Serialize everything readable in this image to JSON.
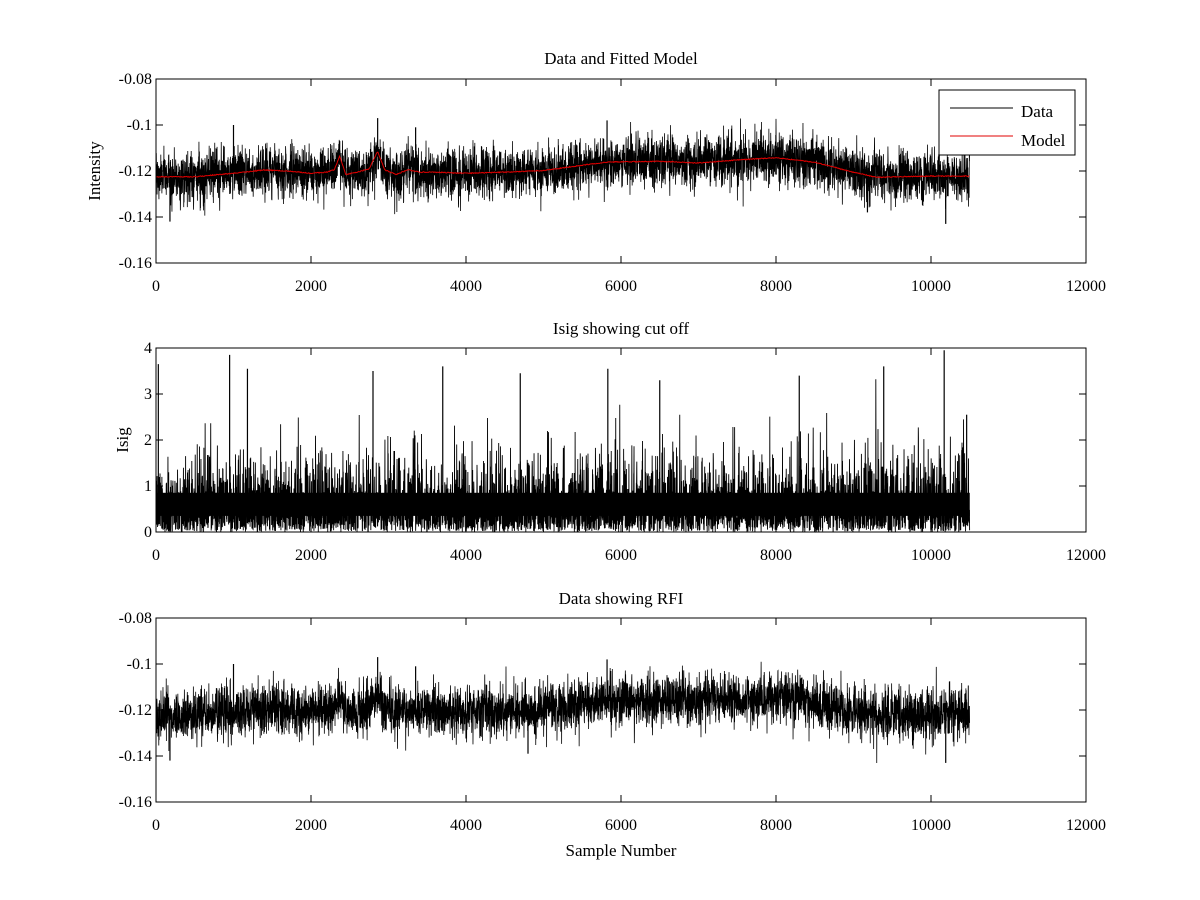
{
  "figure": {
    "background_color": "#ffffff",
    "axes_color": "#000000"
  },
  "chart_data": [
    {
      "type": "line",
      "title": "Data and Fitted Model",
      "xlabel": "",
      "ylabel": "Intensity",
      "xlim": [
        0,
        12000
      ],
      "ylim": [
        -0.16,
        -0.08
      ],
      "xticks": [
        0,
        2000,
        4000,
        6000,
        8000,
        10000,
        12000
      ],
      "yticks": [
        -0.16,
        -0.14,
        -0.12,
        -0.1,
        -0.08
      ],
      "xtick_labels": [
        "0",
        "2000",
        "4000",
        "6000",
        "8000",
        "10000",
        "12000"
      ],
      "ytick_labels": [
        "-0.16",
        "-0.14",
        "-0.12",
        "-0.1",
        "-0.08"
      ],
      "grid": false,
      "legend": {
        "position": "top-right",
        "entries": [
          "Data",
          "Model"
        ]
      },
      "series": [
        {
          "name": "Data",
          "color": "#000000",
          "kind": "noisy",
          "n_samples": 10500,
          "baseline_from": "Model",
          "noise_sd": 0.0055,
          "range_approx": [
            -0.143,
            -0.097
          ],
          "spikes": [
            {
              "x": 2370,
              "y": -0.107
            },
            {
              "x": 2860,
              "y": -0.097
            },
            {
              "x": 5820,
              "y": -0.098
            },
            {
              "x": 1000,
              "y": -0.1
            },
            {
              "x": 3350,
              "y": -0.101
            },
            {
              "x": 10190,
              "y": -0.143
            },
            {
              "x": 180,
              "y": -0.142
            },
            {
              "x": 9180,
              "y": -0.138
            }
          ]
        },
        {
          "name": "Model",
          "color": "#e00000",
          "kind": "line",
          "x": [
            0,
            500,
            1000,
            1400,
            1800,
            2000,
            2200,
            2300,
            2370,
            2450,
            2600,
            2750,
            2860,
            2950,
            3100,
            3250,
            3400,
            3600,
            4000,
            4500,
            5000,
            5500,
            5800,
            6000,
            6500,
            7000,
            7500,
            8000,
            8500,
            9000,
            9300,
            9600,
            10000,
            10500
          ],
          "y": [
            -0.1225,
            -0.1225,
            -0.121,
            -0.1195,
            -0.1203,
            -0.121,
            -0.1205,
            -0.1195,
            -0.1135,
            -0.1215,
            -0.1205,
            -0.119,
            -0.1115,
            -0.1195,
            -0.1215,
            -0.1195,
            -0.1205,
            -0.1205,
            -0.121,
            -0.1205,
            -0.1198,
            -0.1175,
            -0.1162,
            -0.116,
            -0.1158,
            -0.1165,
            -0.1152,
            -0.1142,
            -0.1162,
            -0.1205,
            -0.1228,
            -0.1225,
            -0.1222,
            -0.1222
          ]
        }
      ]
    },
    {
      "type": "line",
      "title": "Isig showing cut off",
      "xlabel": "",
      "ylabel": "Isig",
      "xlim": [
        0,
        12000
      ],
      "ylim": [
        0,
        4
      ],
      "xticks": [
        0,
        2000,
        4000,
        6000,
        8000,
        10000,
        12000
      ],
      "yticks": [
        0,
        1,
        2,
        3,
        4
      ],
      "xtick_labels": [
        "0",
        "2000",
        "4000",
        "6000",
        "8000",
        "10000",
        "12000"
      ],
      "ytick_labels": [
        "0",
        "1",
        "2",
        "3",
        "4"
      ],
      "grid": false,
      "series": [
        {
          "name": "Isig",
          "color": "#000000",
          "kind": "abs-noise",
          "n_samples": 10500,
          "dense_band": [
            0.05,
            1.55
          ],
          "range_approx": [
            0,
            3.95
          ],
          "peaks": [
            {
              "x": 30,
              "y": 3.65
            },
            {
              "x": 950,
              "y": 3.85
            },
            {
              "x": 1180,
              "y": 3.55
            },
            {
              "x": 2800,
              "y": 3.5
            },
            {
              "x": 3700,
              "y": 3.6
            },
            {
              "x": 4700,
              "y": 3.45
            },
            {
              "x": 5830,
              "y": 3.55
            },
            {
              "x": 6500,
              "y": 3.3
            },
            {
              "x": 8300,
              "y": 3.4
            },
            {
              "x": 9390,
              "y": 3.6
            },
            {
              "x": 10170,
              "y": 3.95
            },
            {
              "x": 10460,
              "y": 2.55
            }
          ]
        }
      ]
    },
    {
      "type": "line",
      "title": "Data showing RFI",
      "xlabel": "Sample Number",
      "ylabel": "",
      "xlim": [
        0,
        12000
      ],
      "ylim": [
        -0.16,
        -0.08
      ],
      "xticks": [
        0,
        2000,
        4000,
        6000,
        8000,
        10000,
        12000
      ],
      "yticks": [
        -0.16,
        -0.14,
        -0.12,
        -0.1,
        -0.08
      ],
      "xtick_labels": [
        "0",
        "2000",
        "4000",
        "6000",
        "8000",
        "10000",
        "12000"
      ],
      "ytick_labels": [
        "-0.16",
        "-0.14",
        "-0.12",
        "-0.1",
        "-0.08"
      ],
      "grid": false,
      "series": [
        {
          "name": "Data",
          "color": "#000000",
          "kind": "noisy",
          "n_samples": 10500,
          "baseline_from": "Model",
          "noise_sd": 0.0055,
          "range_approx": [
            -0.143,
            -0.097
          ],
          "spikes": [
            {
              "x": 2860,
              "y": -0.097
            },
            {
              "x": 5820,
              "y": -0.098
            },
            {
              "x": 1000,
              "y": -0.1
            },
            {
              "x": 3350,
              "y": -0.101
            },
            {
              "x": 10190,
              "y": -0.143
            },
            {
              "x": 180,
              "y": -0.142
            },
            {
              "x": 4800,
              "y": -0.139
            }
          ]
        }
      ]
    }
  ]
}
